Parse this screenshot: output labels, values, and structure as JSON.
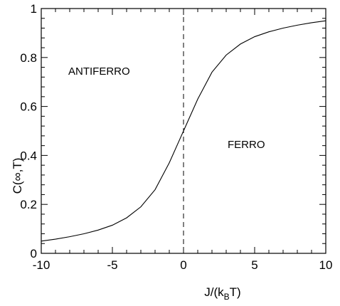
{
  "chart_data": {
    "type": "line",
    "title": "",
    "xlabel_main": "J/(k",
    "xlabel_sub": "B",
    "xlabel_end": "T)",
    "ylabel": "C(∞,T)",
    "xlim": [
      -10,
      10
    ],
    "ylim": [
      0,
      1
    ],
    "x_ticks": [
      -10,
      -5,
      0,
      5,
      10
    ],
    "x_tick_labels": [
      "-10",
      "-5",
      "0",
      "5",
      "10"
    ],
    "y_ticks": [
      0,
      0.2,
      0.4,
      0.6,
      0.8,
      1
    ],
    "y_tick_labels": [
      "0",
      "0.2",
      "0.4",
      "0.6",
      "0.8",
      "1"
    ],
    "grid": false,
    "series": [
      {
        "x": [
          -10,
          -9,
          -8,
          -7,
          -6,
          -5,
          -4,
          -3,
          -2,
          -1,
          0,
          1,
          2,
          3,
          4,
          5,
          6,
          7,
          8,
          9,
          10
        ],
        "values": [
          0.05,
          0.058,
          0.068,
          0.08,
          0.095,
          0.115,
          0.145,
          0.19,
          0.26,
          0.37,
          0.5,
          0.63,
          0.74,
          0.81,
          0.855,
          0.885,
          0.905,
          0.92,
          0.932,
          0.942,
          0.95
        ]
      }
    ],
    "reference_line": {
      "x": 0,
      "style": "dashed"
    },
    "annotations": [
      {
        "text": "ANTIFERRO",
        "x": -8.1,
        "y": 0.73
      },
      {
        "text": "FERRO",
        "x": 3.1,
        "y": 0.43
      }
    ]
  }
}
